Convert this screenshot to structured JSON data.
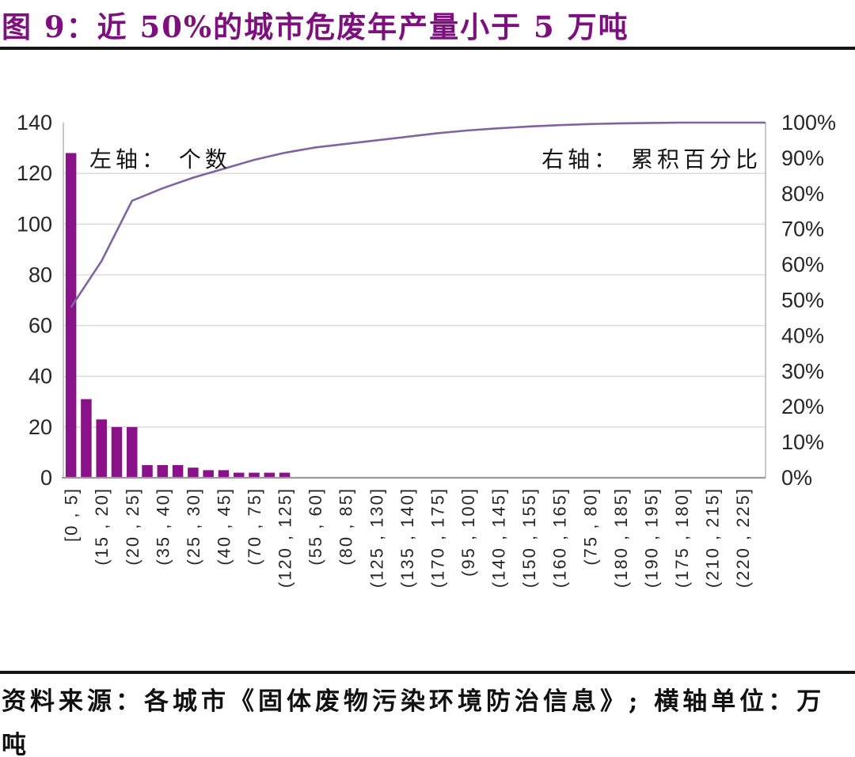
{
  "figure": {
    "title": "图 9：近 50%的城市危废年产量小于 5 万吨",
    "source_note": "资料来源：各城市《固体废物污染环境防治信息》; 横轴单位：万吨"
  },
  "chart_data": {
    "type": "bar",
    "subtype": "pareto (bars = count, line = cumulative percent on secondary axis)",
    "title": "图 9：近 50%的城市危废年产量小于 5 万吨",
    "left_axis": {
      "label": "左轴： 个数",
      "ticks": [
        0,
        20,
        40,
        60,
        80,
        100,
        120,
        140
      ],
      "range": [
        0,
        140
      ]
    },
    "right_axis": {
      "label": "右轴： 累积百分比",
      "ticks": [
        "0%",
        "10%",
        "20%",
        "30%",
        "40%",
        "50%",
        "60%",
        "70%",
        "80%",
        "90%",
        "100%"
      ],
      "range": [
        0,
        100
      ]
    },
    "x_axis": {
      "unit_note": "横轴单位：万吨",
      "note": "every second bar slot is labeled; 46 bar slots total, 23 visible tick labels",
      "tick_labels": [
        "[0 , 5]",
        "(15 , 20]",
        "(20 , 25]",
        "(35 , 40]",
        "(25 , 30]",
        "(40 , 45]",
        "(70 , 75]",
        "(120 , 125]",
        "(55 , 60]",
        "(80 , 85]",
        "(125 , 130]",
        "(135 , 140]",
        "(170 , 175]",
        "(95 , 100]",
        "(140 , 145]",
        "(150 , 155]",
        "(160 , 165]",
        "(75 , 80]",
        "(180 , 185]",
        "(190 , 195]",
        "(175 , 180]",
        "(210 , 215]",
        "(220 , 225]"
      ]
    },
    "bars": {
      "name": "个数",
      "values": [
        128,
        31,
        23,
        20,
        20,
        5,
        5,
        5,
        4,
        3,
        3,
        2,
        2,
        2,
        2,
        0,
        0,
        0,
        0,
        0,
        0,
        0,
        0,
        0,
        0,
        0,
        0,
        0,
        0,
        0,
        0,
        0,
        0,
        0,
        0,
        0,
        0,
        0,
        0,
        0,
        0,
        0,
        0,
        0,
        0,
        0
      ]
    },
    "line": {
      "name": "累积百分比",
      "values_at_labeled_ticks": [
        48,
        61,
        78,
        81.5,
        84.5,
        87,
        89.5,
        91.5,
        93,
        94,
        95,
        96,
        97,
        97.8,
        98.4,
        98.9,
        99.3,
        99.6,
        99.8,
        99.9,
        100,
        100,
        100
      ],
      "end_value": 100
    },
    "grid": "horizontal gridlines at left-axis ticks",
    "legend_position": "none (in-plot text notes instead)",
    "colors": {
      "bar": "#8A1289",
      "line": "#8064A2",
      "title": "#7D107D",
      "gridline": "#D9D9D9",
      "plot_border": "#B7B7B7",
      "baseline": "#9A9A9A",
      "tick_text": "#262626"
    }
  }
}
